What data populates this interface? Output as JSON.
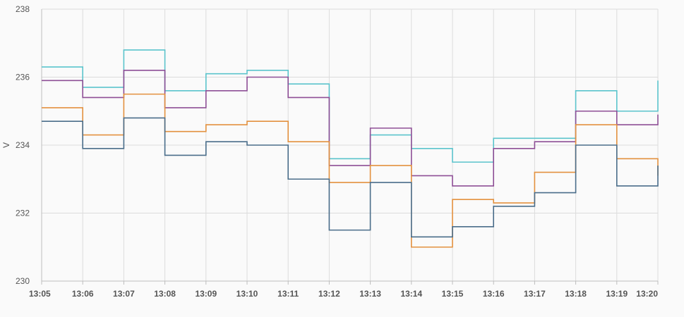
{
  "chart_data": {
    "type": "line",
    "title": "",
    "xlabel": "",
    "ylabel": "V",
    "ylim": [
      230,
      238
    ],
    "yticks": [
      230,
      232,
      234,
      236,
      238
    ],
    "x": [
      "13:05",
      "13:06",
      "13:07",
      "13:08",
      "13:09",
      "13:10",
      "13:11",
      "13:12",
      "13:13",
      "13:14",
      "13:15",
      "13:16",
      "13:17",
      "13:18",
      "13:19",
      "13:20"
    ],
    "grid": true,
    "legend": "none",
    "series": [
      {
        "color": "#5bc4cc",
        "step": true,
        "values": [
          236.3,
          235.7,
          236.8,
          235.6,
          236.1,
          236.2,
          235.8,
          233.6,
          234.3,
          233.9,
          233.5,
          234.2,
          234.2,
          235.6,
          235.0,
          235.9
        ]
      },
      {
        "color": "#8e4f96",
        "step": true,
        "values": [
          235.9,
          235.4,
          236.2,
          235.1,
          235.6,
          236.0,
          235.4,
          233.4,
          234.5,
          233.1,
          232.8,
          233.9,
          234.1,
          235.0,
          234.6,
          234.9
        ]
      },
      {
        "color": "#e3913f",
        "step": true,
        "values": [
          235.1,
          234.3,
          235.5,
          234.4,
          234.6,
          234.7,
          234.1,
          232.9,
          233.4,
          231.0,
          232.4,
          232.3,
          233.2,
          234.6,
          233.6,
          233.1
        ]
      },
      {
        "color": "#4a6d8a",
        "step": true,
        "values": [
          234.7,
          233.9,
          234.8,
          233.7,
          234.1,
          234.0,
          233.0,
          231.5,
          232.9,
          231.3,
          231.6,
          232.2,
          232.6,
          234.0,
          232.8,
          233.4
        ]
      }
    ]
  }
}
